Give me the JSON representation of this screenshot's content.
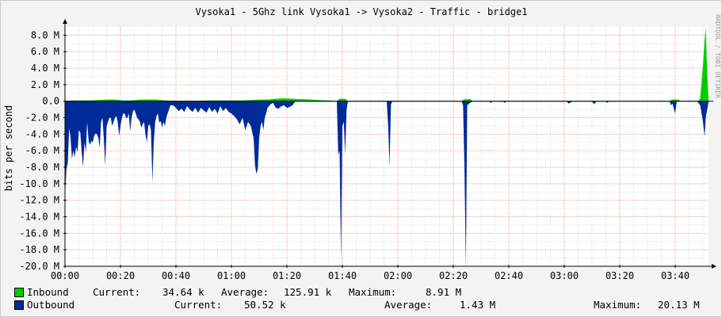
{
  "chart_data": {
    "type": "area",
    "title": "Vysoka1 - 5Ghz link Vysoka1 -> Vysoka2 - Traffic - bridge1",
    "ylabel": "bits per second",
    "watermark": "RRDTOOL / TOBI OETIKER",
    "ylim": [
      -20000000,
      9000000
    ],
    "y_ticks": [
      {
        "value": 8000000,
        "label": "8.0 M"
      },
      {
        "value": 6000000,
        "label": "6.0 M"
      },
      {
        "value": 4000000,
        "label": "4.0 M"
      },
      {
        "value": 2000000,
        "label": "2.0 M"
      },
      {
        "value": 0,
        "label": "0.0"
      },
      {
        "value": -2000000,
        "label": "-2.0 M"
      },
      {
        "value": -4000000,
        "label": "-4.0 M"
      },
      {
        "value": -6000000,
        "label": "-6.0 M"
      },
      {
        "value": -8000000,
        "label": "-8.0 M"
      },
      {
        "value": -10000000,
        "label": "-10.0 M"
      },
      {
        "value": -12000000,
        "label": "-12.0 M"
      },
      {
        "value": -14000000,
        "label": "-14.0 M"
      },
      {
        "value": -16000000,
        "label": "-16.0 M"
      },
      {
        "value": -18000000,
        "label": "-18.0 M"
      },
      {
        "value": -20000000,
        "label": "-20.0 M"
      }
    ],
    "x_ticks": [
      {
        "minute": 0,
        "label": "00:00"
      },
      {
        "minute": 20,
        "label": "00:20"
      },
      {
        "minute": 40,
        "label": "00:40"
      },
      {
        "minute": 60,
        "label": "01:00"
      },
      {
        "minute": 80,
        "label": "01:20"
      },
      {
        "minute": 100,
        "label": "01:40"
      },
      {
        "minute": 120,
        "label": "02:00"
      },
      {
        "minute": 140,
        "label": "02:20"
      },
      {
        "minute": 160,
        "label": "02:40"
      },
      {
        "minute": 180,
        "label": "03:00"
      },
      {
        "minute": 200,
        "label": "03:20"
      },
      {
        "minute": 220,
        "label": "03:40"
      }
    ],
    "xlim_minutes": [
      0,
      232
    ],
    "grid": true,
    "colors": {
      "inbound": "#00cc00",
      "outbound": "#002a97"
    },
    "series": [
      {
        "name": "Inbound",
        "points": [
          [
            0,
            0.05
          ],
          [
            3,
            0.1
          ],
          [
            6,
            0.1
          ],
          [
            9,
            0.1
          ],
          [
            12,
            0.15
          ],
          [
            15,
            0.2
          ],
          [
            18,
            0.2
          ],
          [
            21,
            0.1
          ],
          [
            24,
            0.1
          ],
          [
            27,
            0.2
          ],
          [
            30,
            0.2
          ],
          [
            33,
            0.2
          ],
          [
            36,
            0.1
          ],
          [
            40,
            0.05
          ],
          [
            44,
            0.05
          ],
          [
            48,
            0.05
          ],
          [
            52,
            0.1
          ],
          [
            55,
            0.1
          ],
          [
            58,
            0.1
          ],
          [
            61,
            0.1
          ],
          [
            64,
            0.1
          ],
          [
            67,
            0.15
          ],
          [
            70,
            0.2
          ],
          [
            73,
            0.2
          ],
          [
            76,
            0.3
          ],
          [
            79,
            0.35
          ],
          [
            82,
            0.3
          ],
          [
            98,
            0.05
          ],
          [
            99,
            0.3
          ],
          [
            101,
            0.3
          ],
          [
            102,
            0.05
          ],
          [
            143,
            0.05
          ],
          [
            144,
            0.25
          ],
          [
            146,
            0.25
          ],
          [
            147,
            0.05
          ],
          [
            218,
            0.05
          ],
          [
            219,
            0.2
          ],
          [
            221,
            0.2
          ],
          [
            222,
            0.05
          ],
          [
            228.5,
            0.05
          ],
          [
            229,
            0.4
          ],
          [
            230,
            4.3
          ],
          [
            230.6,
            7.5
          ],
          [
            231,
            8.9
          ],
          [
            231.5,
            3.5
          ],
          [
            232,
            0.1
          ]
        ]
      },
      {
        "name": "Outbound",
        "points": [
          [
            0,
            -11.5
          ],
          [
            0.5,
            -8.2
          ],
          [
            1,
            -7.5
          ],
          [
            1.5,
            -3.3
          ],
          [
            2,
            -4.4
          ],
          [
            2.5,
            -7.0
          ],
          [
            3,
            -6.0
          ],
          [
            3.5,
            -6.8
          ],
          [
            4,
            -5.5
          ],
          [
            4.5,
            -6.2
          ],
          [
            5,
            -3.5
          ],
          [
            5.5,
            -3.8
          ],
          [
            6,
            -6.0
          ],
          [
            6.5,
            -8.0
          ],
          [
            7,
            -5.0
          ],
          [
            7.5,
            -6.2
          ],
          [
            8,
            -2.5
          ],
          [
            8.5,
            -4.8
          ],
          [
            9,
            -5.3
          ],
          [
            9.5,
            -4.8
          ],
          [
            10,
            -5.0
          ],
          [
            10.5,
            -4.2
          ],
          [
            11,
            -3.9
          ],
          [
            11.5,
            -4.0
          ],
          [
            12,
            -4.4
          ],
          [
            12.5,
            -5.6
          ],
          [
            13,
            -2.5
          ],
          [
            13.5,
            -2.0
          ],
          [
            14,
            -4.5
          ],
          [
            14.5,
            -7.8
          ],
          [
            15,
            -3.0
          ],
          [
            15.5,
            -2.5
          ],
          [
            16,
            -2.0
          ],
          [
            16.5,
            -2.0
          ],
          [
            17,
            -3.0
          ],
          [
            17.5,
            -2.5
          ],
          [
            18,
            -2.0
          ],
          [
            18.5,
            -1.8
          ],
          [
            19,
            -2.5
          ],
          [
            19.5,
            -4.2
          ],
          [
            20,
            -3.0
          ],
          [
            20.5,
            -2.0
          ],
          [
            21,
            -1.5
          ],
          [
            21.5,
            -1.5
          ],
          [
            22,
            -2.0
          ],
          [
            22.5,
            -2.0
          ],
          [
            23,
            -1.5
          ],
          [
            23.5,
            -3.6
          ],
          [
            24,
            -2.0
          ],
          [
            24.5,
            -1.2
          ],
          [
            25,
            -1.0
          ],
          [
            25.5,
            -1.5
          ],
          [
            26,
            -2.0
          ],
          [
            26.5,
            -2.2
          ],
          [
            27,
            -2.5
          ],
          [
            27.5,
            -3.2
          ],
          [
            28,
            -2.8
          ],
          [
            28.5,
            -2.5
          ],
          [
            29,
            -4.0
          ],
          [
            29.5,
            -5.0
          ],
          [
            30,
            -3.0
          ],
          [
            30.5,
            -2.8
          ],
          [
            31,
            -3.5
          ],
          [
            31.5,
            -9.8
          ],
          [
            32,
            -5.0
          ],
          [
            32.5,
            -2.5
          ],
          [
            33,
            -1.8
          ],
          [
            33.5,
            -1.5
          ],
          [
            34,
            -2.6
          ],
          [
            34.5,
            -2.4
          ],
          [
            35,
            -3.2
          ],
          [
            35.5,
            -2.5
          ],
          [
            36,
            -3.0
          ],
          [
            36.5,
            -2.0
          ],
          [
            37,
            -1.5
          ],
          [
            37.5,
            -1.0
          ],
          [
            38,
            -0.5
          ],
          [
            39,
            -0.5
          ],
          [
            40,
            -0.8
          ],
          [
            41,
            -1.2
          ],
          [
            42,
            -0.9
          ],
          [
            43,
            -1.3
          ],
          [
            44,
            -0.6
          ],
          [
            45,
            -1.0
          ],
          [
            46,
            -1.3
          ],
          [
            47,
            -0.8
          ],
          [
            48,
            -1.4
          ],
          [
            49,
            -0.8
          ],
          [
            50,
            -1.1
          ],
          [
            51,
            -1.4
          ],
          [
            52,
            -0.7
          ],
          [
            53,
            -1.3
          ],
          [
            54,
            -0.9
          ],
          [
            55,
            -1.5
          ],
          [
            56,
            -0.6
          ],
          [
            57,
            -1.2
          ],
          [
            58,
            -0.8
          ],
          [
            59,
            -1.3
          ],
          [
            60,
            -1.5
          ],
          [
            61,
            -1.8
          ],
          [
            62,
            -2.2
          ],
          [
            63,
            -2.8
          ],
          [
            64,
            -2.0
          ],
          [
            65,
            -3.5
          ],
          [
            66,
            -2.5
          ],
          [
            67,
            -3.0
          ],
          [
            68,
            -4.5
          ],
          [
            68.5,
            -7.8
          ],
          [
            69,
            -8.8
          ],
          [
            69.5,
            -8.2
          ],
          [
            70,
            -4.5
          ],
          [
            70.5,
            -3.0
          ],
          [
            71,
            -2.5
          ],
          [
            71.5,
            -3.5
          ],
          [
            72,
            -2.0
          ],
          [
            72.5,
            -1.5
          ],
          [
            73,
            -0.8
          ],
          [
            73.5,
            -0.6
          ],
          [
            74,
            -0.4
          ],
          [
            75,
            -0.2
          ],
          [
            76,
            -0.8
          ],
          [
            77,
            -0.9
          ],
          [
            78,
            -0.6
          ],
          [
            79,
            -0.5
          ],
          [
            80,
            -0.8
          ],
          [
            81,
            -0.7
          ],
          [
            82,
            -0.5
          ],
          [
            83,
            -0.05
          ],
          [
            98,
            -0.05
          ],
          [
            98.5,
            -6.5
          ],
          [
            99,
            -6.0
          ],
          [
            99.5,
            -19.5
          ],
          [
            100,
            -3.0
          ],
          [
            100.5,
            -2.5
          ],
          [
            101,
            -6.5
          ],
          [
            101.5,
            -1.0
          ],
          [
            102,
            -0.05
          ],
          [
            116,
            -0.05
          ],
          [
            116.5,
            -3.0
          ],
          [
            117,
            -7.8
          ],
          [
            117.5,
            -0.4
          ],
          [
            118,
            -0.05
          ],
          [
            143,
            -0.05
          ],
          [
            143.5,
            -0.5
          ],
          [
            144,
            -7.8
          ],
          [
            144.5,
            -20.0
          ],
          [
            145,
            -0.5
          ],
          [
            146,
            -0.2
          ],
          [
            147,
            -0.05
          ],
          [
            153,
            -0.05
          ],
          [
            153.5,
            -0.2
          ],
          [
            154,
            -0.05
          ],
          [
            158,
            -0.05
          ],
          [
            158.5,
            -0.2
          ],
          [
            159,
            -0.05
          ],
          [
            181,
            -0.05
          ],
          [
            181.5,
            -0.3
          ],
          [
            182,
            -0.2
          ],
          [
            183,
            -0.05
          ],
          [
            190,
            -0.05
          ],
          [
            190.5,
            -0.3
          ],
          [
            191,
            -0.3
          ],
          [
            191.5,
            -0.05
          ],
          [
            195,
            -0.05
          ],
          [
            195.5,
            -0.2
          ],
          [
            196,
            -0.05
          ],
          [
            218,
            -0.05
          ],
          [
            218.5,
            -0.5
          ],
          [
            219,
            -0.3
          ],
          [
            219.5,
            -0.9
          ],
          [
            220,
            -1.5
          ],
          [
            220.5,
            -0.05
          ],
          [
            228,
            -0.05
          ],
          [
            229,
            -0.5
          ],
          [
            230,
            -2.5
          ],
          [
            230.6,
            -4.3
          ],
          [
            231,
            -2.0
          ],
          [
            232,
            -0.1
          ]
        ]
      }
    ]
  },
  "legend": {
    "inbound": {
      "name": "Inbound",
      "current_label": "Current:",
      "current": "34.64 k",
      "average_label": "Average:",
      "average": "125.91 k",
      "maximum_label": "Maximum:",
      "maximum": "8.91 M"
    },
    "outbound": {
      "name": "Outbound",
      "current_label": "Current:",
      "current": "50.52 k",
      "average_label": "Average:",
      "average": "1.43 M",
      "maximum_label": "Maximum:",
      "maximum": "20.13 M"
    }
  }
}
